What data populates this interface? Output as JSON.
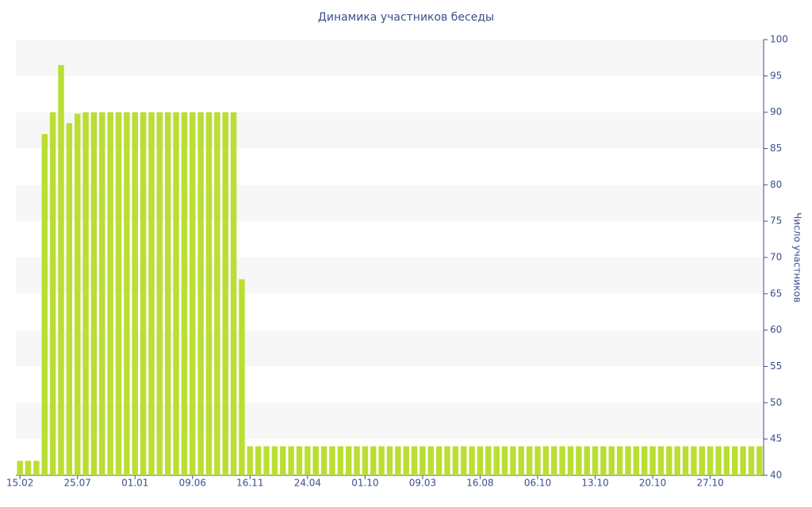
{
  "chart_data": {
    "type": "bar",
    "title": "Динамика участников беседы",
    "y_label": "Число участников",
    "categories": [
      "15.02",
      null,
      null,
      null,
      null,
      null,
      null,
      "25.07",
      null,
      null,
      null,
      null,
      null,
      null,
      "01.01",
      null,
      null,
      null,
      null,
      null,
      null,
      "09.06",
      null,
      null,
      null,
      null,
      null,
      null,
      "16.11",
      null,
      null,
      null,
      null,
      null,
      null,
      "24.04",
      null,
      null,
      null,
      null,
      null,
      null,
      "01.10",
      null,
      null,
      null,
      null,
      null,
      null,
      "09.03",
      null,
      null,
      null,
      null,
      null,
      null,
      "16.08",
      null,
      null,
      null,
      null,
      null,
      null,
      "06.10",
      null,
      null,
      null,
      null,
      null,
      null,
      "13.10",
      null,
      null,
      null,
      null,
      null,
      null,
      "20.10",
      null,
      null,
      null,
      null,
      null,
      null,
      "27.10",
      null,
      null,
      null,
      null,
      null,
      null
    ],
    "values": [
      42,
      42,
      42,
      87,
      90,
      96.5,
      88.5,
      89.8,
      90,
      90,
      90,
      90,
      90,
      90,
      90,
      90,
      90,
      90,
      90,
      90,
      90,
      90,
      90,
      90,
      90,
      90,
      90,
      67,
      44,
      44,
      44,
      44,
      44,
      44,
      44,
      44,
      44,
      44,
      44,
      44,
      44,
      44,
      44,
      44,
      44,
      44,
      44,
      44,
      44,
      44,
      44,
      44,
      44,
      44,
      44,
      44,
      44,
      44,
      44,
      44,
      44,
      44,
      44,
      44,
      44,
      44,
      44,
      44,
      44,
      44,
      44,
      44,
      44,
      44,
      44,
      44,
      44,
      44,
      44,
      44,
      44,
      44,
      44,
      44,
      44,
      44,
      44,
      44,
      44,
      44,
      44
    ],
    "color": "#bade33",
    "ylim": [
      40,
      100
    ],
    "yticks": [
      40,
      45,
      50,
      55,
      60,
      65,
      70,
      75,
      80,
      85,
      90,
      95,
      100
    ],
    "y_axis_side": "right",
    "grid_bands": true
  }
}
